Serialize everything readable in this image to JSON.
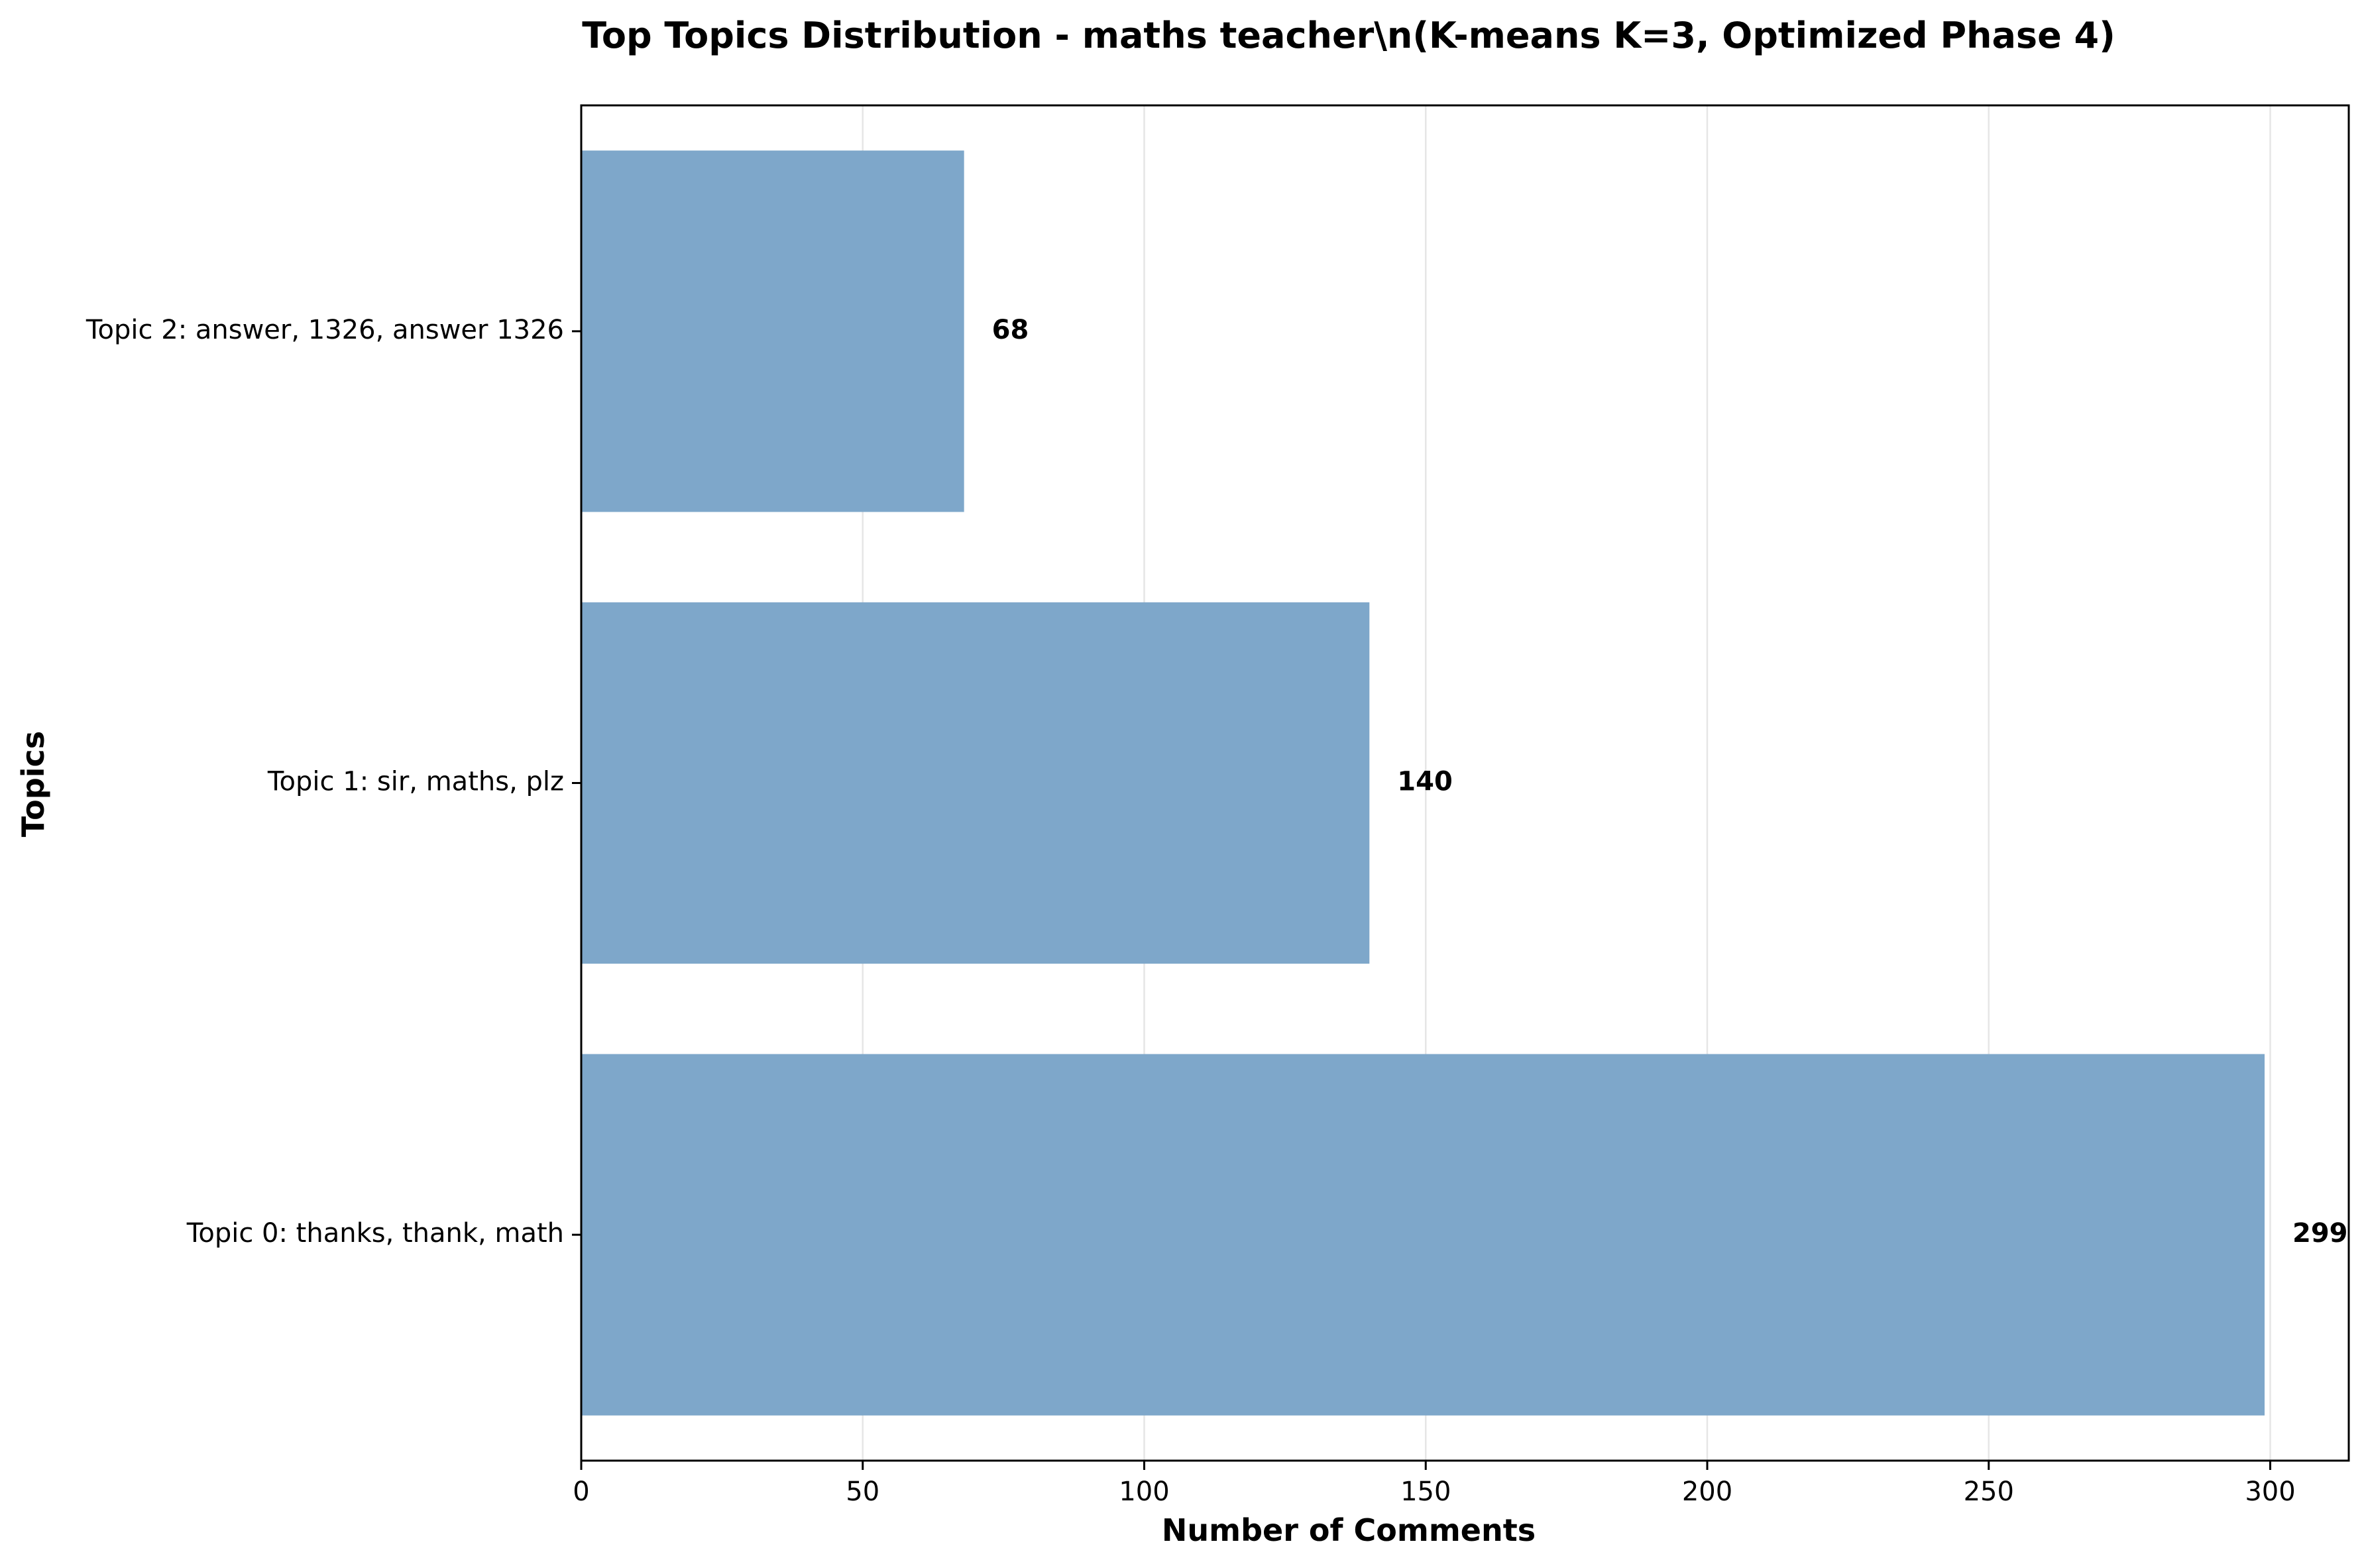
{
  "chart_data": {
    "type": "bar",
    "orientation": "horizontal",
    "title": "Top Topics Distribution - maths teacher\\n(K-means K=3, Optimized Phase 4)",
    "xlabel": "Number of Comments",
    "ylabel": "Topics",
    "categories": [
      "Topic 0: thanks, thank, math",
      "Topic 1: sir, maths, plz",
      "Topic 2: answer, 1326, answer 1326"
    ],
    "values": [
      299,
      140,
      68
    ],
    "value_labels": [
      "299",
      "140",
      "68"
    ],
    "xlim": [
      0,
      313.95
    ],
    "xticks": [
      0,
      50,
      100,
      150,
      200,
      250,
      300
    ],
    "xtick_labels": [
      "0",
      "50",
      "100",
      "150",
      "200",
      "250",
      "300"
    ],
    "grid": "vertical gridlines on",
    "legend": "none",
    "colors": {
      "bar": "#7ea7ca",
      "grid": "#e6e6e6",
      "axis": "#000000"
    }
  }
}
